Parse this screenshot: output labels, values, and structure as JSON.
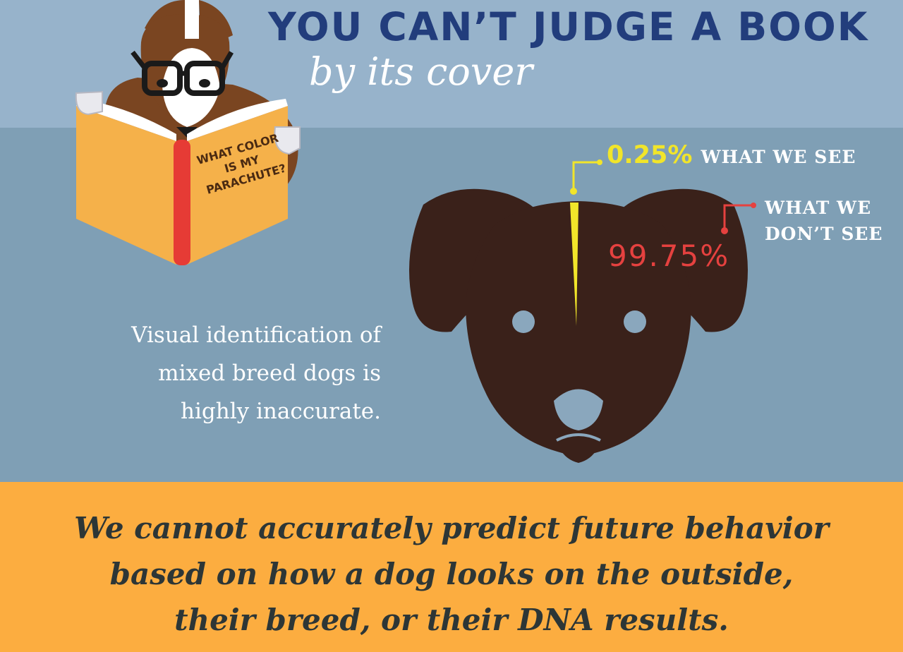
{
  "header": {
    "title": "YOU CAN’T JUDGE A BOOK",
    "subtitle": "by its cover"
  },
  "book": {
    "cover_lines": [
      "WHAT COLOR",
      "IS MY",
      "PARACHUTE?"
    ]
  },
  "stats": {
    "seen_percent": "0.25%",
    "seen_label": "WHAT WE SEE",
    "unseen_label_lines": [
      "WHAT WE",
      "DON’T SEE"
    ],
    "unseen_percent": "99.75%"
  },
  "caption_lines": [
    "Visual identification of",
    "mixed breed dogs is",
    "highly inaccurate."
  ],
  "footer_lines": [
    "We cannot accurately predict future behavior",
    "based on how a dog looks on the outside,",
    "their breed, or their DNA results."
  ],
  "colors": {
    "navy": "#223d7c",
    "yellow": "#f1e52a",
    "red": "#e5413f",
    "orange": "#fcad40",
    "dog_brown": "#3a211a"
  }
}
